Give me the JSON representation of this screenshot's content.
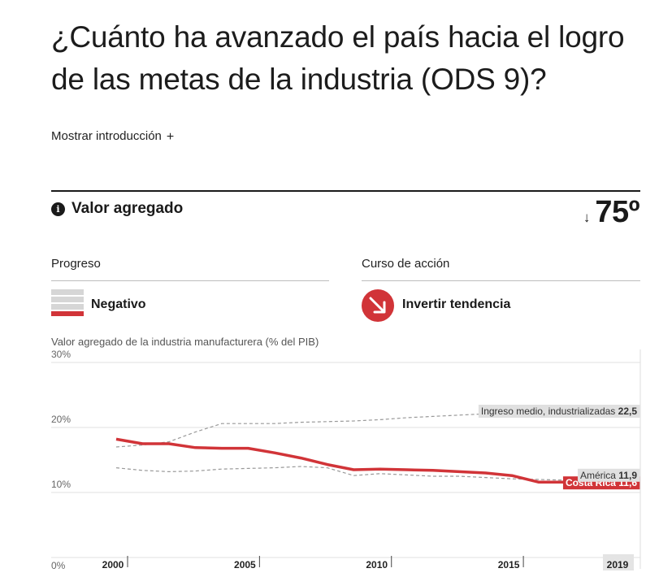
{
  "title": "¿Cuánto ha avanzado el país hacia el logro de las metas de la industria (ODS 9)?",
  "intro_toggle": {
    "label": "Mostrar introducción",
    "icon": "+"
  },
  "indicator": {
    "name": "Valor agregado",
    "rank_arrow": "↓",
    "rank": "75º"
  },
  "progress": {
    "label": "Progreso",
    "value": "Negativo"
  },
  "action": {
    "label": "Curso de acción",
    "value": "Invertir tendencia"
  },
  "colors": {
    "accent": "#d13438",
    "grey_bar": "#d6d6d6"
  },
  "chart_data": {
    "type": "line",
    "title": "Valor agregado de la industria manufacturera (% del PIB)",
    "xlim": [
      2000,
      2019
    ],
    "ylim": [
      0,
      30
    ],
    "y_ticks": [
      0,
      10,
      20,
      30
    ],
    "y_tick_labels": [
      "0%",
      "10%",
      "20%",
      "30%"
    ],
    "x_ticks": [
      2000,
      2005,
      2010,
      2015,
      2019
    ],
    "x_tick_labels": [
      "2000",
      "2005",
      "2010",
      "2015",
      "2019"
    ],
    "grid": true,
    "series": [
      {
        "name": "Costa Rica",
        "label_value": "11,6",
        "style": "solid",
        "color": "#d13438",
        "x": [
          2000,
          2001,
          2002,
          2003,
          2004,
          2005,
          2006,
          2007,
          2008,
          2009,
          2010,
          2011,
          2012,
          2013,
          2014,
          2015,
          2016,
          2017,
          2018,
          2019
        ],
        "y": [
          18.2,
          17.5,
          17.5,
          16.9,
          16.8,
          16.8,
          16.1,
          15.3,
          14.3,
          13.5,
          13.6,
          13.5,
          13.4,
          13.2,
          13.0,
          12.6,
          11.6,
          11.6,
          11.6,
          11.6
        ]
      },
      {
        "name": "Ingreso medio, industrializadas",
        "label_value": "22,5",
        "style": "dashed",
        "color": "#999999",
        "x": [
          2000,
          2001,
          2002,
          2003,
          2004,
          2005,
          2006,
          2007,
          2008,
          2009,
          2010,
          2011,
          2012,
          2013,
          2014,
          2015,
          2016,
          2017,
          2018,
          2019
        ],
        "y": [
          17.0,
          17.3,
          17.8,
          19.3,
          20.6,
          20.6,
          20.6,
          20.8,
          20.9,
          21.0,
          21.2,
          21.5,
          21.7,
          21.9,
          22.1,
          22.3,
          22.4,
          22.5,
          22.5,
          22.5
        ]
      },
      {
        "name": "América",
        "label_value": "11,9",
        "style": "dashed",
        "color": "#999999",
        "x": [
          2000,
          2001,
          2002,
          2003,
          2004,
          2005,
          2006,
          2007,
          2008,
          2009,
          2010,
          2011,
          2012,
          2013,
          2014,
          2015,
          2016,
          2017,
          2018,
          2019
        ],
        "y": [
          13.8,
          13.4,
          13.2,
          13.3,
          13.6,
          13.7,
          13.8,
          14.0,
          13.8,
          12.6,
          12.9,
          12.7,
          12.5,
          12.5,
          12.3,
          12.1,
          12.0,
          11.9,
          11.9,
          11.9
        ]
      }
    ]
  }
}
